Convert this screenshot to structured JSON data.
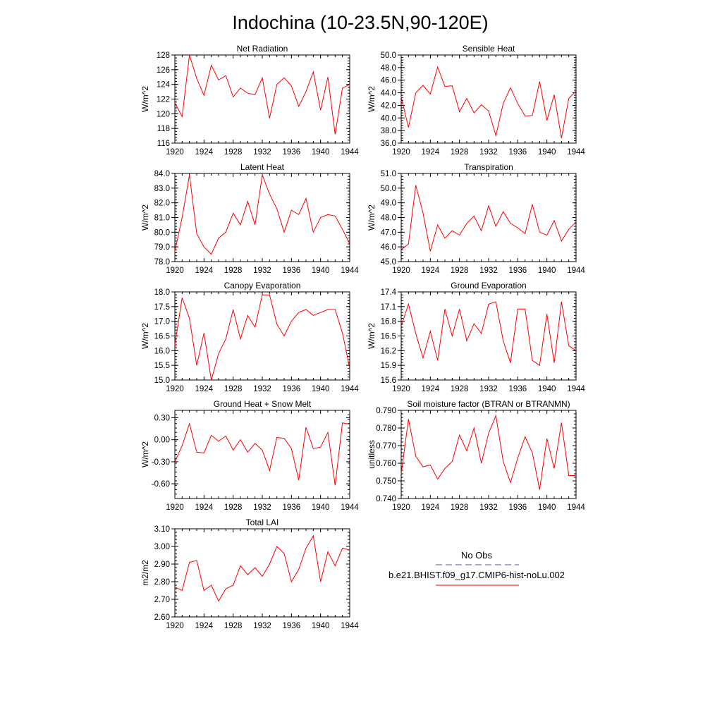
{
  "title": "Indochina (10-23.5N,90-120E)",
  "legend": {
    "obs_label": "No Obs",
    "obs_color": "#5a5a8c",
    "model_label": "b.e21.BHIST.f09_g17.CMIP6-hist-noLu.002",
    "model_color": "#ff0000"
  },
  "chart_data": [
    {
      "type": "line",
      "title": "Net Radiation",
      "ylabel": "W/m^2",
      "xlim": [
        1920,
        1944
      ],
      "x_ticks": [
        "1920",
        "1924",
        "1928",
        "1932",
        "1936",
        "1940",
        "1944"
      ],
      "ylim": [
        116,
        128
      ],
      "y_ticks": [
        "116",
        "118",
        "120",
        "122",
        "124",
        "126",
        "128"
      ],
      "series": [
        {
          "color": "#ff0000",
          "x": [
            1920,
            1921,
            1922,
            1923,
            1924,
            1925,
            1926,
            1927,
            1928,
            1929,
            1930,
            1931,
            1932,
            1933,
            1934,
            1935,
            1936,
            1937,
            1938,
            1939,
            1940,
            1941,
            1942,
            1943,
            1944
          ],
          "y": [
            121.5,
            119.6,
            128.0,
            124.8,
            122.5,
            126.6,
            124.6,
            125.2,
            122.3,
            123.5,
            122.8,
            122.6,
            124.9,
            119.4,
            124.0,
            124.9,
            123.8,
            121.0,
            123.0,
            125.7,
            120.5,
            125.0,
            117.2,
            123.5,
            124.0
          ]
        }
      ]
    },
    {
      "type": "line",
      "title": "Sensible Heat",
      "ylabel": "W/m^2",
      "xlim": [
        1920,
        1944
      ],
      "x_ticks": [
        "1920",
        "1924",
        "1928",
        "1932",
        "1936",
        "1940",
        "1944"
      ],
      "ylim": [
        36,
        50
      ],
      "y_ticks": [
        "36.0",
        "38.0",
        "40.0",
        "42.0",
        "44.0",
        "46.0",
        "48.0",
        "50.0"
      ],
      "series": [
        {
          "color": "#ff0000",
          "x": [
            1920,
            1921,
            1922,
            1923,
            1924,
            1925,
            1926,
            1927,
            1928,
            1929,
            1930,
            1931,
            1932,
            1933,
            1934,
            1935,
            1936,
            1937,
            1938,
            1939,
            1940,
            1941,
            1942,
            1943,
            1944
          ],
          "y": [
            43.3,
            38.5,
            44.0,
            45.2,
            43.8,
            48.1,
            45.0,
            45.1,
            41.0,
            43.1,
            40.8,
            42.1,
            41.1,
            37.2,
            42.3,
            44.8,
            42.3,
            40.3,
            40.4,
            45.8,
            39.6,
            43.7,
            36.8,
            43.1,
            44.3
          ]
        }
      ]
    },
    {
      "type": "line",
      "title": "Latent Heat",
      "ylabel": "W/m^2",
      "xlim": [
        1920,
        1944
      ],
      "x_ticks": [
        "1920",
        "1924",
        "1928",
        "1932",
        "1936",
        "1940",
        "1944"
      ],
      "ylim": [
        78,
        84
      ],
      "y_ticks": [
        "78.0",
        "79.0",
        "80.0",
        "81.0",
        "82.0",
        "83.0",
        "84.0"
      ],
      "series": [
        {
          "color": "#ff0000",
          "x": [
            1920,
            1921,
            1922,
            1923,
            1924,
            1925,
            1926,
            1927,
            1928,
            1929,
            1930,
            1931,
            1932,
            1933,
            1934,
            1935,
            1936,
            1937,
            1938,
            1939,
            1940,
            1941,
            1942,
            1943,
            1944
          ],
          "y": [
            78.7,
            81.0,
            83.9,
            79.9,
            79.0,
            78.5,
            79.6,
            80.0,
            81.3,
            80.5,
            82.1,
            80.5,
            83.9,
            82.6,
            81.6,
            80.0,
            81.5,
            81.2,
            82.3,
            80.0,
            81.0,
            81.2,
            81.1,
            80.2,
            79.2
          ]
        }
      ]
    },
    {
      "type": "line",
      "title": "Transpiration",
      "ylabel": "W/m^2",
      "xlim": [
        1920,
        1944
      ],
      "x_ticks": [
        "1920",
        "1924",
        "1928",
        "1932",
        "1936",
        "1940",
        "1944"
      ],
      "ylim": [
        45,
        51
      ],
      "y_ticks": [
        "45.0",
        "46.0",
        "47.0",
        "48.0",
        "49.0",
        "50.0",
        "51.0"
      ],
      "series": [
        {
          "color": "#ff0000",
          "x": [
            1920,
            1921,
            1922,
            1923,
            1924,
            1925,
            1926,
            1927,
            1928,
            1929,
            1930,
            1931,
            1932,
            1933,
            1934,
            1935,
            1936,
            1937,
            1938,
            1939,
            1940,
            1941,
            1942,
            1943,
            1944
          ],
          "y": [
            45.8,
            46.2,
            50.2,
            48.3,
            45.7,
            47.5,
            46.6,
            47.1,
            46.8,
            47.6,
            48.1,
            47.1,
            48.8,
            47.4,
            48.4,
            47.6,
            47.3,
            46.9,
            48.9,
            47.0,
            46.8,
            47.8,
            46.4,
            47.2,
            47.7
          ]
        }
      ]
    },
    {
      "type": "line",
      "title": "Canopy Evaporation",
      "ylabel": "W/m^2",
      "xlim": [
        1920,
        1944
      ],
      "x_ticks": [
        "1920",
        "1924",
        "1928",
        "1932",
        "1936",
        "1940",
        "1944"
      ],
      "ylim": [
        15,
        18
      ],
      "y_ticks": [
        "15.0",
        "15.5",
        "16.0",
        "16.5",
        "17.0",
        "17.5",
        "18.0"
      ],
      "series": [
        {
          "color": "#ff0000",
          "x": [
            1920,
            1921,
            1922,
            1923,
            1924,
            1925,
            1926,
            1927,
            1928,
            1929,
            1930,
            1931,
            1932,
            1933,
            1934,
            1935,
            1936,
            1937,
            1938,
            1939,
            1940,
            1941,
            1942,
            1943,
            1944
          ],
          "y": [
            16.2,
            17.8,
            17.1,
            15.5,
            16.6,
            15.0,
            15.9,
            16.4,
            17.4,
            16.4,
            17.2,
            16.8,
            17.9,
            17.9,
            16.9,
            16.5,
            17.0,
            17.3,
            17.4,
            17.2,
            17.3,
            17.4,
            17.4,
            16.6,
            15.4
          ]
        }
      ]
    },
    {
      "type": "line",
      "title": "Ground Evaporation",
      "ylabel": "W/m^2",
      "xlim": [
        1920,
        1944
      ],
      "x_ticks": [
        "1920",
        "1924",
        "1928",
        "1932",
        "1936",
        "1940",
        "1944"
      ],
      "ylim": [
        15.6,
        17.4
      ],
      "y_ticks": [
        "15.6",
        "15.9",
        "16.2",
        "16.5",
        "16.8",
        "17.1",
        "17.4"
      ],
      "series": [
        {
          "color": "#ff0000",
          "x": [
            1920,
            1921,
            1922,
            1923,
            1924,
            1925,
            1926,
            1927,
            1928,
            1929,
            1930,
            1931,
            1932,
            1933,
            1934,
            1935,
            1936,
            1937,
            1938,
            1939,
            1940,
            1941,
            1942,
            1943,
            1944
          ],
          "y": [
            16.7,
            17.15,
            16.55,
            16.05,
            16.6,
            16.0,
            17.05,
            16.5,
            17.05,
            16.4,
            16.75,
            16.55,
            17.15,
            17.2,
            16.4,
            15.95,
            17.05,
            17.05,
            16.0,
            15.9,
            16.95,
            15.95,
            17.2,
            16.3,
            16.2
          ]
        }
      ]
    },
    {
      "type": "line",
      "title": "Ground Heat + Snow Melt",
      "ylabel": "W/m^2",
      "xlim": [
        1920,
        1944
      ],
      "x_ticks": [
        "1920",
        "1924",
        "1928",
        "1932",
        "1936",
        "1940",
        "1944"
      ],
      "ylim": [
        -0.8,
        0.4
      ],
      "y_ticks": [
        "-0.60",
        "-0.30",
        "0.00",
        "0.30"
      ],
      "y_tick_values": [
        -0.6,
        -0.3,
        0.0,
        0.3
      ],
      "series": [
        {
          "color": "#ff0000",
          "x": [
            1920,
            1921,
            1922,
            1923,
            1924,
            1925,
            1926,
            1927,
            1928,
            1929,
            1930,
            1931,
            1932,
            1933,
            1934,
            1935,
            1936,
            1937,
            1938,
            1939,
            1940,
            1941,
            1942,
            1943,
            1944
          ],
          "y": [
            -0.3,
            -0.08,
            0.22,
            -0.17,
            -0.18,
            0.06,
            -0.02,
            0.05,
            -0.14,
            0.0,
            -0.17,
            -0.05,
            -0.14,
            -0.42,
            0.03,
            0.02,
            -0.12,
            -0.55,
            0.17,
            -0.12,
            -0.1,
            0.1,
            -0.62,
            0.23,
            0.21
          ]
        }
      ]
    },
    {
      "type": "line",
      "title": "Soil moisture factor (BTRAN or BTRANMN)",
      "ylabel": "unitless",
      "xlim": [
        1920,
        1944
      ],
      "x_ticks": [
        "1920",
        "1924",
        "1928",
        "1932",
        "1936",
        "1940",
        "1944"
      ],
      "ylim": [
        0.74,
        0.79
      ],
      "y_ticks": [
        "0.740",
        "0.750",
        "0.760",
        "0.770",
        "0.780",
        "0.790"
      ],
      "series": [
        {
          "color": "#ff0000",
          "x": [
            1920,
            1921,
            1922,
            1923,
            1924,
            1925,
            1926,
            1927,
            1928,
            1929,
            1930,
            1931,
            1932,
            1933,
            1934,
            1935,
            1936,
            1937,
            1938,
            1939,
            1940,
            1941,
            1942,
            1943,
            1944
          ],
          "y": [
            0.754,
            0.785,
            0.764,
            0.758,
            0.759,
            0.751,
            0.757,
            0.761,
            0.776,
            0.767,
            0.78,
            0.76,
            0.777,
            0.787,
            0.761,
            0.749,
            0.763,
            0.775,
            0.766,
            0.745,
            0.774,
            0.757,
            0.783,
            0.753,
            0.753
          ]
        }
      ]
    },
    {
      "type": "line",
      "title": "Total LAI",
      "ylabel": "m2/m2",
      "xlim": [
        1920,
        1944
      ],
      "x_ticks": [
        "1920",
        "1924",
        "1928",
        "1932",
        "1936",
        "1940",
        "1944"
      ],
      "ylim": [
        2.6,
        3.1
      ],
      "y_ticks": [
        "2.60",
        "2.70",
        "2.80",
        "2.90",
        "3.00",
        "3.10"
      ],
      "series": [
        {
          "color": "#ff0000",
          "x": [
            1920,
            1921,
            1922,
            1923,
            1924,
            1925,
            1926,
            1927,
            1928,
            1929,
            1930,
            1931,
            1932,
            1933,
            1934,
            1935,
            1936,
            1937,
            1938,
            1939,
            1940,
            1941,
            1942,
            1943,
            1944
          ],
          "y": [
            2.77,
            2.75,
            2.91,
            2.92,
            2.75,
            2.78,
            2.69,
            2.76,
            2.78,
            2.89,
            2.84,
            2.88,
            2.83,
            2.9,
            3.0,
            2.96,
            2.8,
            2.87,
            2.99,
            3.06,
            2.8,
            2.97,
            2.89,
            2.99,
            2.98
          ]
        }
      ]
    }
  ]
}
